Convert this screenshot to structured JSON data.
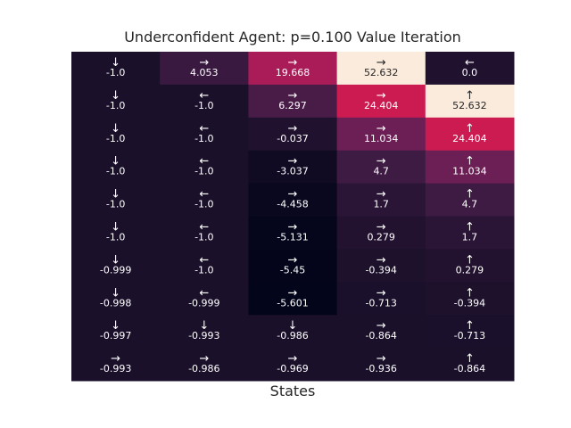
{
  "chart_data": {
    "type": "heatmap",
    "title": "Underconfident Agent: p=0.100 Value Iteration",
    "xlabel": "States",
    "ylabel": "",
    "rows": 10,
    "cols": 5,
    "colormap": "rocket",
    "value_range": [
      -5.601,
      52.632
    ],
    "values": [
      [
        -1.0,
        4.053,
        19.668,
        52.632,
        0.0
      ],
      [
        -1.0,
        -1.0,
        6.297,
        24.404,
        52.632
      ],
      [
        -1.0,
        -1.0,
        -0.037,
        11.034,
        24.404
      ],
      [
        -1.0,
        -1.0,
        -3.037,
        4.7,
        11.034
      ],
      [
        -1.0,
        -1.0,
        -4.458,
        1.7,
        4.7
      ],
      [
        -1.0,
        -1.0,
        -5.131,
        0.279,
        1.7
      ],
      [
        -0.999,
        -1.0,
        -5.45,
        -0.394,
        0.279
      ],
      [
        -0.998,
        -0.999,
        -5.601,
        -0.713,
        -0.394
      ],
      [
        -0.997,
        -0.993,
        -0.986,
        -0.864,
        -0.713
      ],
      [
        -0.993,
        -0.986,
        -0.969,
        -0.936,
        -0.864
      ]
    ],
    "labels": [
      [
        "-1.0",
        "4.053",
        "19.668",
        "52.632",
        "0.0"
      ],
      [
        "-1.0",
        "-1.0",
        "6.297",
        "24.404",
        "52.632"
      ],
      [
        "-1.0",
        "-1.0",
        "-0.037",
        "11.034",
        "24.404"
      ],
      [
        "-1.0",
        "-1.0",
        "-3.037",
        "4.7",
        "11.034"
      ],
      [
        "-1.0",
        "-1.0",
        "-4.458",
        "1.7",
        "4.7"
      ],
      [
        "-1.0",
        "-1.0",
        "-5.131",
        "0.279",
        "1.7"
      ],
      [
        "-0.999",
        "-1.0",
        "-5.45",
        "-0.394",
        "0.279"
      ],
      [
        "-0.998",
        "-0.999",
        "-5.601",
        "-0.713",
        "-0.394"
      ],
      [
        "-0.997",
        "-0.993",
        "-0.986",
        "-0.864",
        "-0.713"
      ],
      [
        "-0.993",
        "-0.986",
        "-0.969",
        "-0.936",
        "-0.864"
      ]
    ],
    "arrows": [
      [
        "↓",
        "→",
        "→",
        "→",
        "←"
      ],
      [
        "↓",
        "←",
        "→",
        "→",
        "↑"
      ],
      [
        "↓",
        "←",
        "→",
        "→",
        "↑"
      ],
      [
        "↓",
        "←",
        "→",
        "→",
        "↑"
      ],
      [
        "↓",
        "←",
        "→",
        "→",
        "↑"
      ],
      [
        "↓",
        "←",
        "→",
        "→",
        "↑"
      ],
      [
        "↓",
        "←",
        "→",
        "→",
        "↑"
      ],
      [
        "↓",
        "←",
        "→",
        "→",
        "↑"
      ],
      [
        "↓",
        "↓",
        "↓",
        "→",
        "↑"
      ],
      [
        "→",
        "→",
        "→",
        "→",
        "↑"
      ]
    ]
  }
}
